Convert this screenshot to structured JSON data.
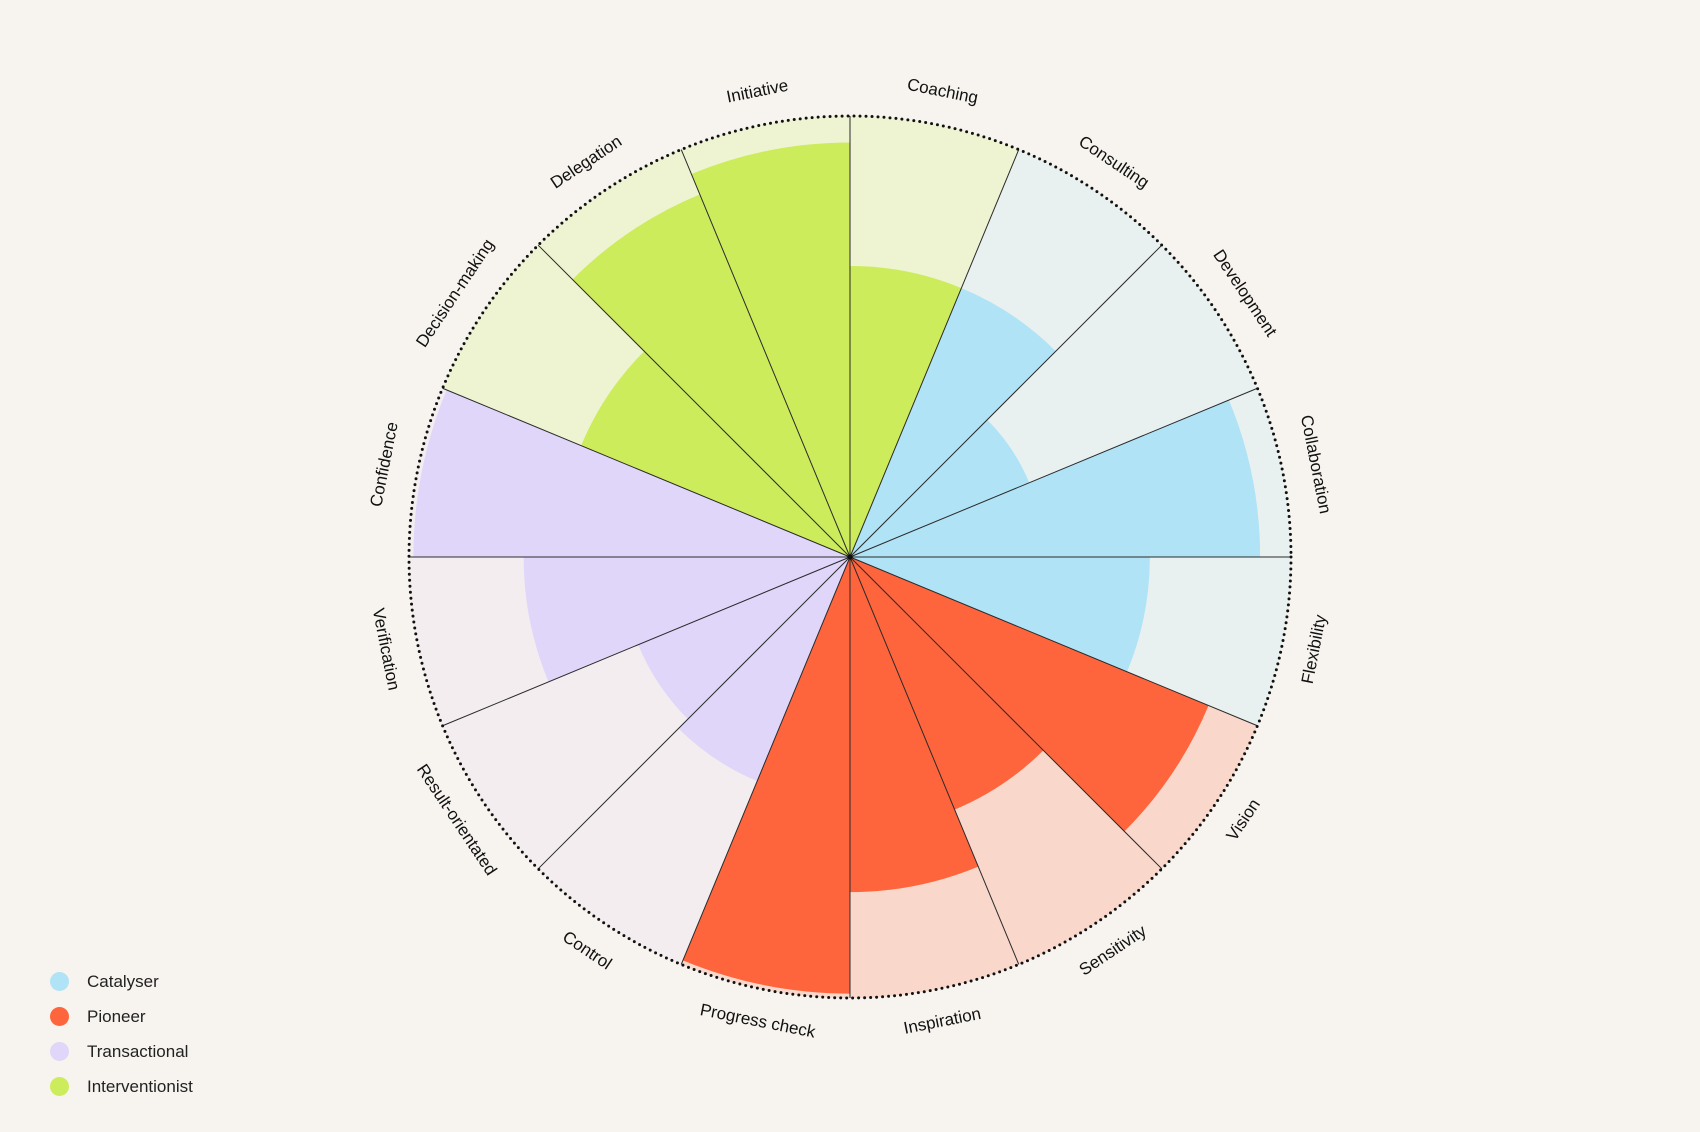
{
  "chart_data": {
    "type": "polar-area",
    "max": 10,
    "segments": [
      {
        "label": "Coaching",
        "group": "Interventionist",
        "value": 6.6
      },
      {
        "label": "Consulting",
        "group": "Catalyser",
        "value": 6.6
      },
      {
        "label": "Development",
        "group": "Catalyser",
        "value": 4.4
      },
      {
        "label": "Collaboration",
        "group": "Catalyser",
        "value": 9.3
      },
      {
        "label": "Flexibility",
        "group": "Catalyser",
        "value": 6.8
      },
      {
        "label": "Vision",
        "group": "Pioneer",
        "value": 8.8
      },
      {
        "label": "Sensitivity",
        "group": "Pioneer",
        "value": 6.2
      },
      {
        "label": "Inspiration",
        "group": "Pioneer",
        "value": 7.6
      },
      {
        "label": "Progress check",
        "group": "Pioneer",
        "value": 9.9
      },
      {
        "label": "Control",
        "group": "Transactional",
        "value": 5.5
      },
      {
        "label": "Result-orientated",
        "group": "Transactional",
        "value": 5.2
      },
      {
        "label": "Verification",
        "group": "Transactional",
        "value": 7.4
      },
      {
        "label": "Confidence",
        "group": "Transactional",
        "value": 9.9
      },
      {
        "label": "Decision-making",
        "group": "Interventionist",
        "value": 6.6
      },
      {
        "label": "Delegation",
        "group": "Interventionist",
        "value": 8.9
      },
      {
        "label": "Initiative",
        "group": "Interventionist",
        "value": 9.4
      }
    ],
    "groups": [
      {
        "name": "Catalyser",
        "color": "#b0e3f6",
        "bg": "#e8f1f0"
      },
      {
        "name": "Pioneer",
        "color": "#ff653c",
        "bg": "#f9d7cb"
      },
      {
        "name": "Transactional",
        "color": "#e0d6fa",
        "bg": "#f3edf0"
      },
      {
        "name": "Interventionist",
        "color": "#cdec5c",
        "bg": "#eef4d2"
      }
    ],
    "legend_position": "bottom-left"
  },
  "legend": {
    "items": [
      {
        "label": "Catalyser",
        "color": "#b0e3f6"
      },
      {
        "label": "Pioneer",
        "color": "#ff653c"
      },
      {
        "label": "Transactional",
        "color": "#e0d6fa"
      },
      {
        "label": "Interventionist",
        "color": "#cdec5c"
      }
    ]
  }
}
